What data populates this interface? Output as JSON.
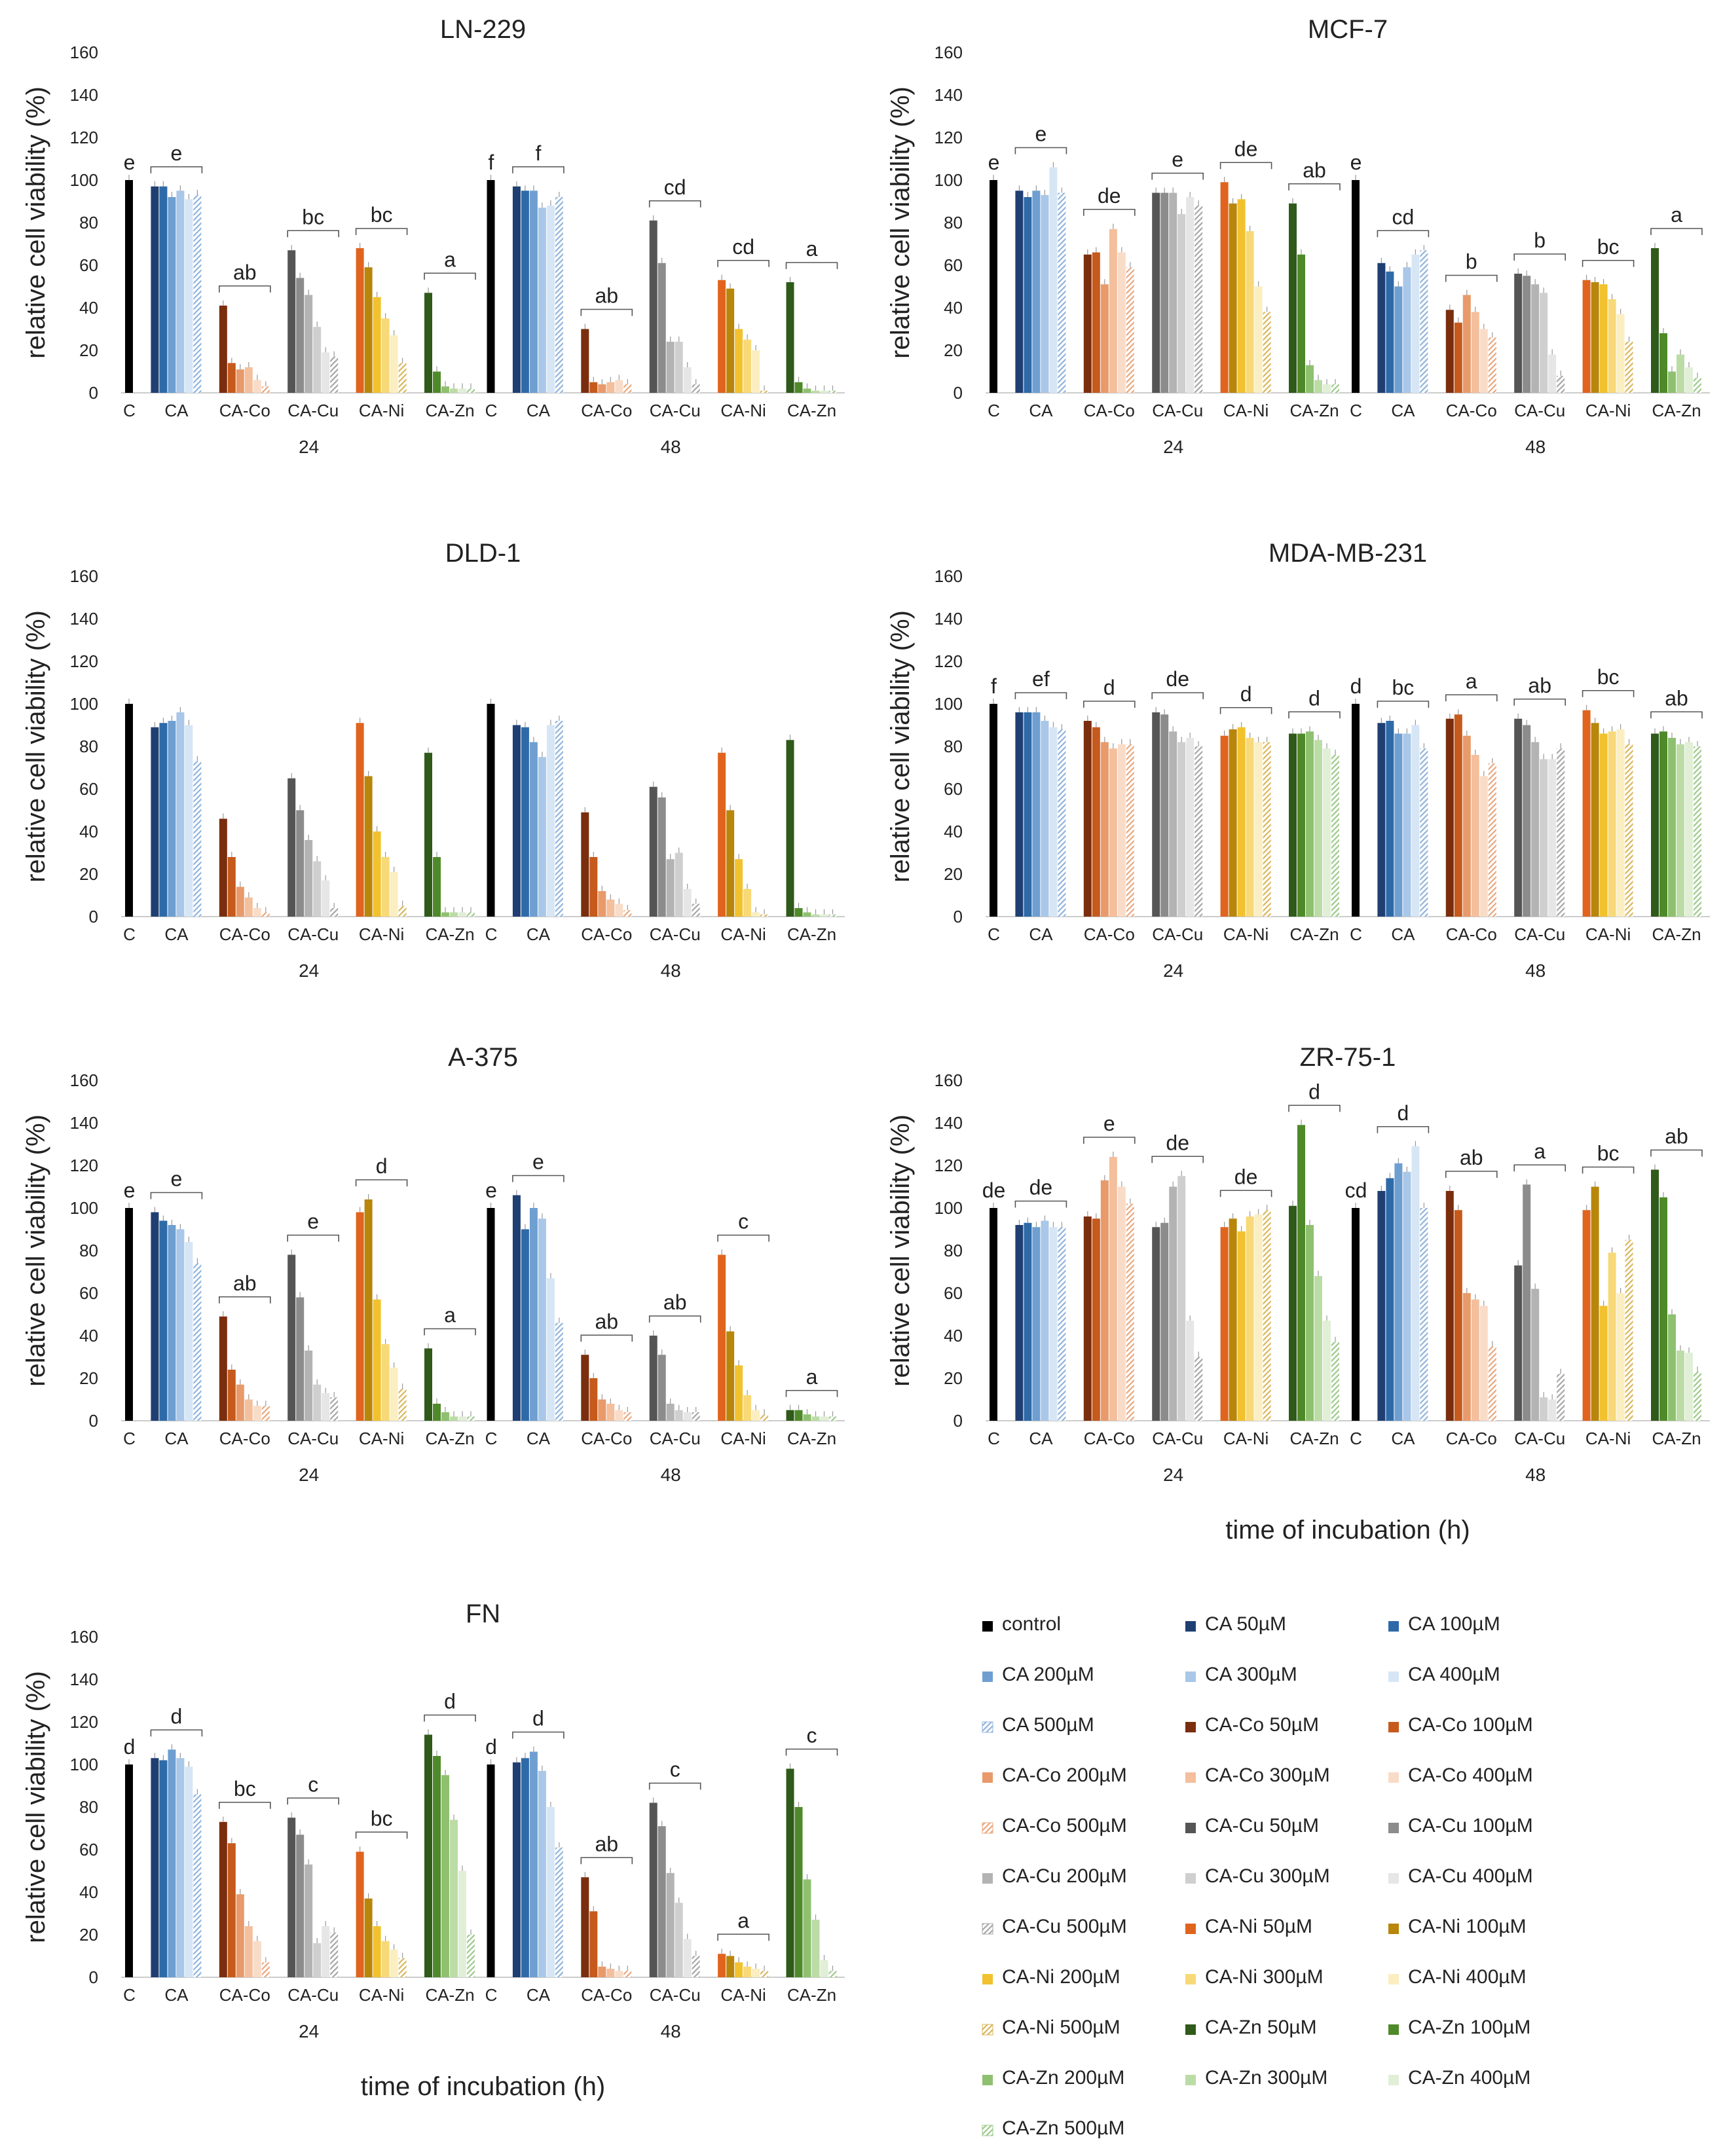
{
  "figure": {
    "x_axis_title": "time of incubation (h)",
    "y_axis_title": "relative cell viability (%)",
    "y_ticks": [
      "0",
      "20",
      "40",
      "60",
      "80",
      "100",
      "120",
      "140",
      "160"
    ],
    "x_groups": [
      "C",
      "CA",
      "CA-Co",
      "CA-Cu",
      "CA-Ni",
      "CA-Zn"
    ],
    "time_points": [
      "24",
      "48"
    ]
  },
  "legend": {
    "items": [
      {
        "label": "control",
        "color": "#000000",
        "pattern": false
      },
      {
        "label": "CA 50µM",
        "color": "#1f3f73",
        "pattern": false
      },
      {
        "label": "CA 100µM",
        "color": "#2e6aa8",
        "pattern": false
      },
      {
        "label": "CA 200µM",
        "color": "#6f9fd1",
        "pattern": false
      },
      {
        "label": "CA 300µM",
        "color": "#a9c7e8",
        "pattern": false
      },
      {
        "label": "CA 400µM",
        "color": "#d7e6f5",
        "pattern": false
      },
      {
        "label": "CA 500µM",
        "color": "#8fb3db",
        "pattern": true
      },
      {
        "label": "CA-Co 50µM",
        "color": "#7a2e0e",
        "pattern": false
      },
      {
        "label": "CA-Co 100µM",
        "color": "#c55a1c",
        "pattern": false
      },
      {
        "label": "CA-Co 200µM",
        "color": "#e89a6a",
        "pattern": false
      },
      {
        "label": "CA-Co 300µM",
        "color": "#f4bf9c",
        "pattern": false
      },
      {
        "label": "CA-Co 400µM",
        "color": "#f9dcc8",
        "pattern": false
      },
      {
        "label": "CA-Co 500µM",
        "color": "#e8a77c",
        "pattern": true
      },
      {
        "label": "CA-Cu 50µM",
        "color": "#555555",
        "pattern": false
      },
      {
        "label": "CA-Cu 100µM",
        "color": "#8c8c8c",
        "pattern": false
      },
      {
        "label": "CA-Cu 200µM",
        "color": "#b3b3b3",
        "pattern": false
      },
      {
        "label": "CA-Cu 300µM",
        "color": "#cfcfcf",
        "pattern": false
      },
      {
        "label": "CA-Cu 400µM",
        "color": "#e6e6e6",
        "pattern": false
      },
      {
        "label": "CA-Cu 500µM",
        "color": "#a6a6a6",
        "pattern": true
      },
      {
        "label": "CA-Ni 50µM",
        "color": "#e0641e",
        "pattern": false
      },
      {
        "label": "CA-Ni 100µM",
        "color": "#b8860b",
        "pattern": false
      },
      {
        "label": "CA-Ni 200µM",
        "color": "#f2c12e",
        "pattern": false
      },
      {
        "label": "CA-Ni 300µM",
        "color": "#f7d978",
        "pattern": false
      },
      {
        "label": "CA-Ni 400µM",
        "color": "#fbeec0",
        "pattern": false
      },
      {
        "label": "CA-Ni 500µM",
        "color": "#d9b65a",
        "pattern": true
      },
      {
        "label": "CA-Zn 50µM",
        "color": "#2f5a1a",
        "pattern": false
      },
      {
        "label": "CA-Zn 100µM",
        "color": "#4f8a2a",
        "pattern": false
      },
      {
        "label": "CA-Zn 200µM",
        "color": "#8fc070",
        "pattern": false
      },
      {
        "label": "CA-Zn 300µM",
        "color": "#bcdca6",
        "pattern": false
      },
      {
        "label": "CA-Zn 400µM",
        "color": "#e0efd6",
        "pattern": false
      },
      {
        "label": "CA-Zn 500µM",
        "color": "#9cc98a",
        "pattern": true
      }
    ]
  },
  "chart_data": [
    {
      "type": "bar",
      "title": "LN-229",
      "ylabel": "relative cell viability (%)",
      "ylim": [
        0,
        160
      ],
      "categories": [
        "C",
        "CA",
        "CA-Co",
        "CA-Cu",
        "CA-Ni",
        "CA-Zn"
      ],
      "times": [
        {
          "label": "24",
          "groups": [
            [
              100
            ],
            [
              97,
              97,
              92,
              95,
              91,
              93
            ],
            [
              41,
              14,
              11,
              12,
              6,
              3
            ],
            [
              67,
              54,
              46,
              31,
              19,
              17
            ],
            [
              68,
              59,
              45,
              35,
              27,
              14
            ],
            [
              47,
              10,
              3,
              2,
              2,
              2
            ]
          ],
          "letters": [
            "e",
            "e",
            "ab",
            "bc",
            "bc",
            "a"
          ]
        },
        {
          "label": "48",
          "groups": [
            [
              100
            ],
            [
              97,
              95,
              95,
              87,
              88,
              92
            ],
            [
              30,
              5,
              4,
              5,
              6,
              4
            ],
            [
              81,
              61,
              24,
              24,
              12,
              4
            ],
            [
              53,
              49,
              30,
              25,
              20,
              1
            ],
            [
              52,
              5,
              2,
              1,
              1,
              1
            ]
          ],
          "letters": [
            "f",
            "f",
            "ab",
            "cd",
            "cd",
            "a"
          ]
        }
      ]
    },
    {
      "type": "bar",
      "title": "MCF-7",
      "ylabel": "relative cell viability (%)",
      "ylim": [
        0,
        160
      ],
      "categories": [
        "C",
        "CA",
        "CA-Co",
        "CA-Cu",
        "CA-Ni",
        "CA-Zn"
      ],
      "times": [
        {
          "label": "24",
          "groups": [
            [
              100
            ],
            [
              95,
              92,
              95,
              93,
              106,
              94
            ],
            [
              65,
              66,
              51,
              77,
              66,
              59
            ],
            [
              94,
              94,
              94,
              84,
              92,
              88
            ],
            [
              99,
              89,
              91,
              76,
              50,
              38
            ],
            [
              89,
              65,
              13,
              6,
              4,
              4
            ]
          ],
          "letters": [
            "e",
            "e",
            "de",
            "e",
            "de",
            "ab"
          ]
        },
        {
          "label": "48",
          "groups": [
            [
              100
            ],
            [
              61,
              57,
              50,
              59,
              65,
              67
            ],
            [
              39,
              33,
              46,
              38,
              30,
              26
            ],
            [
              56,
              55,
              51,
              47,
              18,
              8
            ],
            [
              53,
              52,
              51,
              44,
              37,
              24
            ],
            [
              68,
              28,
              10,
              18,
              12,
              7
            ]
          ],
          "letters": [
            "e",
            "cd",
            "b",
            "b",
            "bc",
            "a"
          ]
        }
      ]
    },
    {
      "type": "bar",
      "title": "DLD-1",
      "ylabel": "relative cell viability (%)",
      "ylim": [
        0,
        160
      ],
      "categories": [
        "C",
        "CA",
        "CA-Co",
        "CA-Cu",
        "CA-Ni",
        "CA-Zn"
      ],
      "times": [
        {
          "label": "24",
          "groups": [
            [
              100
            ],
            [
              89,
              91,
              92,
              96,
              90,
              73
            ],
            [
              46,
              28,
              14,
              9,
              4,
              2
            ],
            [
              65,
              50,
              36,
              26,
              17,
              4
            ],
            [
              91,
              66,
              40,
              28,
              21,
              5
            ],
            [
              77,
              28,
              2,
              2,
              2,
              2
            ]
          ],
          "letters": [
            "",
            "",
            "",
            "",
            "",
            ""
          ]
        },
        {
          "label": "48",
          "groups": [
            [
              100
            ],
            [
              90,
              89,
              82,
              75,
              90,
              92
            ],
            [
              49,
              28,
              12,
              8,
              6,
              3
            ],
            [
              61,
              56,
              27,
              30,
              13,
              6
            ],
            [
              77,
              50,
              27,
              13,
              2,
              1
            ],
            [
              83,
              4,
              2,
              1,
              1,
              1
            ]
          ],
          "letters": [
            "",
            "",
            "",
            "",
            "",
            ""
          ]
        }
      ]
    },
    {
      "type": "bar",
      "title": "MDA-MB-231",
      "ylabel": "relative cell viability (%)",
      "ylim": [
        0,
        160
      ],
      "categories": [
        "C",
        "CA",
        "CA-Co",
        "CA-Cu",
        "CA-Ni",
        "CA-Zn"
      ],
      "times": [
        {
          "label": "24",
          "groups": [
            [
              100
            ],
            [
              96,
              96,
              96,
              92,
              89,
              88
            ],
            [
              92,
              89,
              82,
              79,
              81,
              81
            ],
            [
              96,
              95,
              87,
              82,
              84,
              80
            ],
            [
              85,
              88,
              89,
              84,
              82,
              82
            ],
            [
              86,
              86,
              87,
              83,
              79,
              76
            ]
          ],
          "letters": [
            "f",
            "ef",
            "d",
            "de",
            "d",
            "d"
          ]
        },
        {
          "label": "48",
          "groups": [
            [
              100
            ],
            [
              91,
              92,
              86,
              86,
              90,
              79
            ],
            [
              93,
              95,
              85,
              76,
              66,
              72
            ],
            [
              93,
              90,
              82,
              74,
              74,
              79
            ],
            [
              97,
              91,
              86,
              87,
              88,
              81
            ],
            [
              86,
              87,
              84,
              81,
              82,
              80
            ]
          ],
          "letters": [
            "d",
            "bc",
            "a",
            "ab",
            "bc",
            "ab"
          ]
        }
      ]
    },
    {
      "type": "bar",
      "title": "A-375",
      "ylabel": "relative cell viability (%)",
      "ylim": [
        0,
        160
      ],
      "categories": [
        "C",
        "CA",
        "CA-Co",
        "CA-Cu",
        "CA-Ni",
        "CA-Zn"
      ],
      "times": [
        {
          "label": "24",
          "groups": [
            [
              100
            ],
            [
              98,
              94,
              92,
              90,
              84,
              74
            ],
            [
              49,
              24,
              17,
              10,
              7,
              7
            ],
            [
              78,
              58,
              33,
              17,
              13,
              11
            ],
            [
              98,
              104,
              57,
              36,
              25,
              15
            ],
            [
              34,
              8,
              4,
              2,
              2,
              2
            ]
          ],
          "letters": [
            "e",
            "e",
            "ab",
            "e",
            "d",
            "a"
          ]
        },
        {
          "label": "48",
          "groups": [
            [
              100
            ],
            [
              106,
              90,
              100,
              95,
              67,
              46
            ],
            [
              31,
              20,
              10,
              8,
              5,
              4
            ],
            [
              40,
              31,
              8,
              5,
              4,
              4
            ],
            [
              78,
              42,
              26,
              12,
              5,
              3
            ],
            [
              5,
              5,
              3,
              2,
              2,
              2
            ]
          ],
          "letters": [
            "e",
            "e",
            "ab",
            "ab",
            "c",
            "a"
          ]
        }
      ]
    },
    {
      "type": "bar",
      "title": "ZR-75-1",
      "ylabel": "relative cell viability (%)",
      "ylim": [
        0,
        160
      ],
      "categories": [
        "C",
        "CA",
        "CA-Co",
        "CA-Cu",
        "CA-Ni",
        "CA-Zn"
      ],
      "times": [
        {
          "label": "24",
          "groups": [
            [
              100
            ],
            [
              92,
              93,
              91,
              94,
              91,
              91
            ],
            [
              96,
              95,
              113,
              124,
              110,
              102
            ],
            [
              91,
              93,
              110,
              115,
              47,
              30
            ],
            [
              91,
              95,
              89,
              96,
              97,
              99
            ],
            [
              101,
              139,
              92,
              68,
              47,
              37
            ]
          ],
          "letters": [
            "de",
            "de",
            "e",
            "de",
            "de",
            "d"
          ]
        },
        {
          "label": "48",
          "groups": [
            [
              100
            ],
            [
              108,
              114,
              121,
              117,
              129,
              100
            ],
            [
              108,
              99,
              60,
              57,
              54,
              35
            ],
            [
              73,
              111,
              62,
              11,
              10,
              22
            ],
            [
              99,
              110,
              54,
              79,
              60,
              85
            ],
            [
              118,
              105,
              50,
              33,
              32,
              23
            ]
          ],
          "letters": [
            "cd",
            "d",
            "ab",
            "a",
            "bc",
            "ab"
          ]
        }
      ]
    },
    {
      "type": "bar",
      "title": "FN",
      "ylabel": "relative cell viability (%)",
      "ylim": [
        0,
        160
      ],
      "categories": [
        "C",
        "CA",
        "CA-Co",
        "CA-Cu",
        "CA-Ni",
        "CA-Zn"
      ],
      "times": [
        {
          "label": "24",
          "groups": [
            [
              100
            ],
            [
              103,
              102,
              107,
              103,
              99,
              86
            ],
            [
              73,
              63,
              39,
              24,
              17,
              7
            ],
            [
              75,
              67,
              53,
              16,
              24,
              21
            ],
            [
              59,
              37,
              24,
              17,
              13,
              9
            ],
            [
              114,
              104,
              95,
              74,
              50,
              20
            ]
          ],
          "letters": [
            "d",
            "d",
            "bc",
            "c",
            "bc",
            "d"
          ]
        },
        {
          "label": "48",
          "groups": [
            [
              100
            ],
            [
              101,
              103,
              106,
              97,
              80,
              61
            ],
            [
              47,
              31,
              5,
              4,
              3,
              3
            ],
            [
              82,
              71,
              49,
              35,
              18,
              10
            ],
            [
              11,
              10,
              7,
              5,
              4,
              3
            ],
            [
              98,
              80,
              46,
              27,
              8,
              3
            ]
          ],
          "letters": [
            "d",
            "d",
            "ab",
            "c",
            "a",
            "c"
          ]
        }
      ]
    }
  ]
}
